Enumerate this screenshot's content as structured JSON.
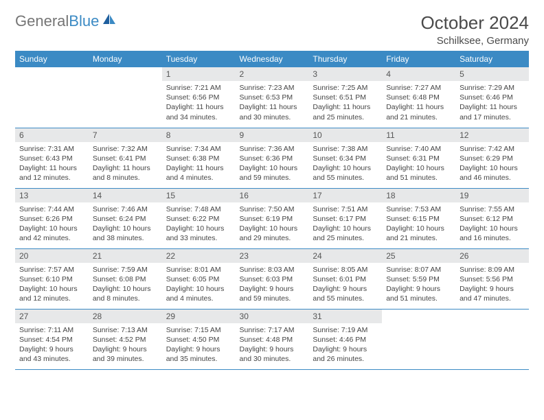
{
  "brand": {
    "gray": "General",
    "blue": "Blue"
  },
  "title": "October 2024",
  "location": "Schilksee, Germany",
  "colors": {
    "header_bg": "#3b8ac4",
    "header_text": "#ffffff",
    "daynum_bg": "#e7e8e9",
    "rule": "#3b8ac4",
    "text": "#444444"
  },
  "weekdays": [
    "Sunday",
    "Monday",
    "Tuesday",
    "Wednesday",
    "Thursday",
    "Friday",
    "Saturday"
  ],
  "grid": [
    [
      null,
      null,
      {
        "n": "1",
        "sr": "7:21 AM",
        "ss": "6:56 PM",
        "dl": "11 hours and 34 minutes."
      },
      {
        "n": "2",
        "sr": "7:23 AM",
        "ss": "6:53 PM",
        "dl": "11 hours and 30 minutes."
      },
      {
        "n": "3",
        "sr": "7:25 AM",
        "ss": "6:51 PM",
        "dl": "11 hours and 25 minutes."
      },
      {
        "n": "4",
        "sr": "7:27 AM",
        "ss": "6:48 PM",
        "dl": "11 hours and 21 minutes."
      },
      {
        "n": "5",
        "sr": "7:29 AM",
        "ss": "6:46 PM",
        "dl": "11 hours and 17 minutes."
      }
    ],
    [
      {
        "n": "6",
        "sr": "7:31 AM",
        "ss": "6:43 PM",
        "dl": "11 hours and 12 minutes."
      },
      {
        "n": "7",
        "sr": "7:32 AM",
        "ss": "6:41 PM",
        "dl": "11 hours and 8 minutes."
      },
      {
        "n": "8",
        "sr": "7:34 AM",
        "ss": "6:38 PM",
        "dl": "11 hours and 4 minutes."
      },
      {
        "n": "9",
        "sr": "7:36 AM",
        "ss": "6:36 PM",
        "dl": "10 hours and 59 minutes."
      },
      {
        "n": "10",
        "sr": "7:38 AM",
        "ss": "6:34 PM",
        "dl": "10 hours and 55 minutes."
      },
      {
        "n": "11",
        "sr": "7:40 AM",
        "ss": "6:31 PM",
        "dl": "10 hours and 51 minutes."
      },
      {
        "n": "12",
        "sr": "7:42 AM",
        "ss": "6:29 PM",
        "dl": "10 hours and 46 minutes."
      }
    ],
    [
      {
        "n": "13",
        "sr": "7:44 AM",
        "ss": "6:26 PM",
        "dl": "10 hours and 42 minutes."
      },
      {
        "n": "14",
        "sr": "7:46 AM",
        "ss": "6:24 PM",
        "dl": "10 hours and 38 minutes."
      },
      {
        "n": "15",
        "sr": "7:48 AM",
        "ss": "6:22 PM",
        "dl": "10 hours and 33 minutes."
      },
      {
        "n": "16",
        "sr": "7:50 AM",
        "ss": "6:19 PM",
        "dl": "10 hours and 29 minutes."
      },
      {
        "n": "17",
        "sr": "7:51 AM",
        "ss": "6:17 PM",
        "dl": "10 hours and 25 minutes."
      },
      {
        "n": "18",
        "sr": "7:53 AM",
        "ss": "6:15 PM",
        "dl": "10 hours and 21 minutes."
      },
      {
        "n": "19",
        "sr": "7:55 AM",
        "ss": "6:12 PM",
        "dl": "10 hours and 16 minutes."
      }
    ],
    [
      {
        "n": "20",
        "sr": "7:57 AM",
        "ss": "6:10 PM",
        "dl": "10 hours and 12 minutes."
      },
      {
        "n": "21",
        "sr": "7:59 AM",
        "ss": "6:08 PM",
        "dl": "10 hours and 8 minutes."
      },
      {
        "n": "22",
        "sr": "8:01 AM",
        "ss": "6:05 PM",
        "dl": "10 hours and 4 minutes."
      },
      {
        "n": "23",
        "sr": "8:03 AM",
        "ss": "6:03 PM",
        "dl": "9 hours and 59 minutes."
      },
      {
        "n": "24",
        "sr": "8:05 AM",
        "ss": "6:01 PM",
        "dl": "9 hours and 55 minutes."
      },
      {
        "n": "25",
        "sr": "8:07 AM",
        "ss": "5:59 PM",
        "dl": "9 hours and 51 minutes."
      },
      {
        "n": "26",
        "sr": "8:09 AM",
        "ss": "5:56 PM",
        "dl": "9 hours and 47 minutes."
      }
    ],
    [
      {
        "n": "27",
        "sr": "7:11 AM",
        "ss": "4:54 PM",
        "dl": "9 hours and 43 minutes."
      },
      {
        "n": "28",
        "sr": "7:13 AM",
        "ss": "4:52 PM",
        "dl": "9 hours and 39 minutes."
      },
      {
        "n": "29",
        "sr": "7:15 AM",
        "ss": "4:50 PM",
        "dl": "9 hours and 35 minutes."
      },
      {
        "n": "30",
        "sr": "7:17 AM",
        "ss": "4:48 PM",
        "dl": "9 hours and 30 minutes."
      },
      {
        "n": "31",
        "sr": "7:19 AM",
        "ss": "4:46 PM",
        "dl": "9 hours and 26 minutes."
      },
      null,
      null
    ]
  ],
  "labels": {
    "sunrise": "Sunrise:",
    "sunset": "Sunset:",
    "daylight": "Daylight:"
  }
}
